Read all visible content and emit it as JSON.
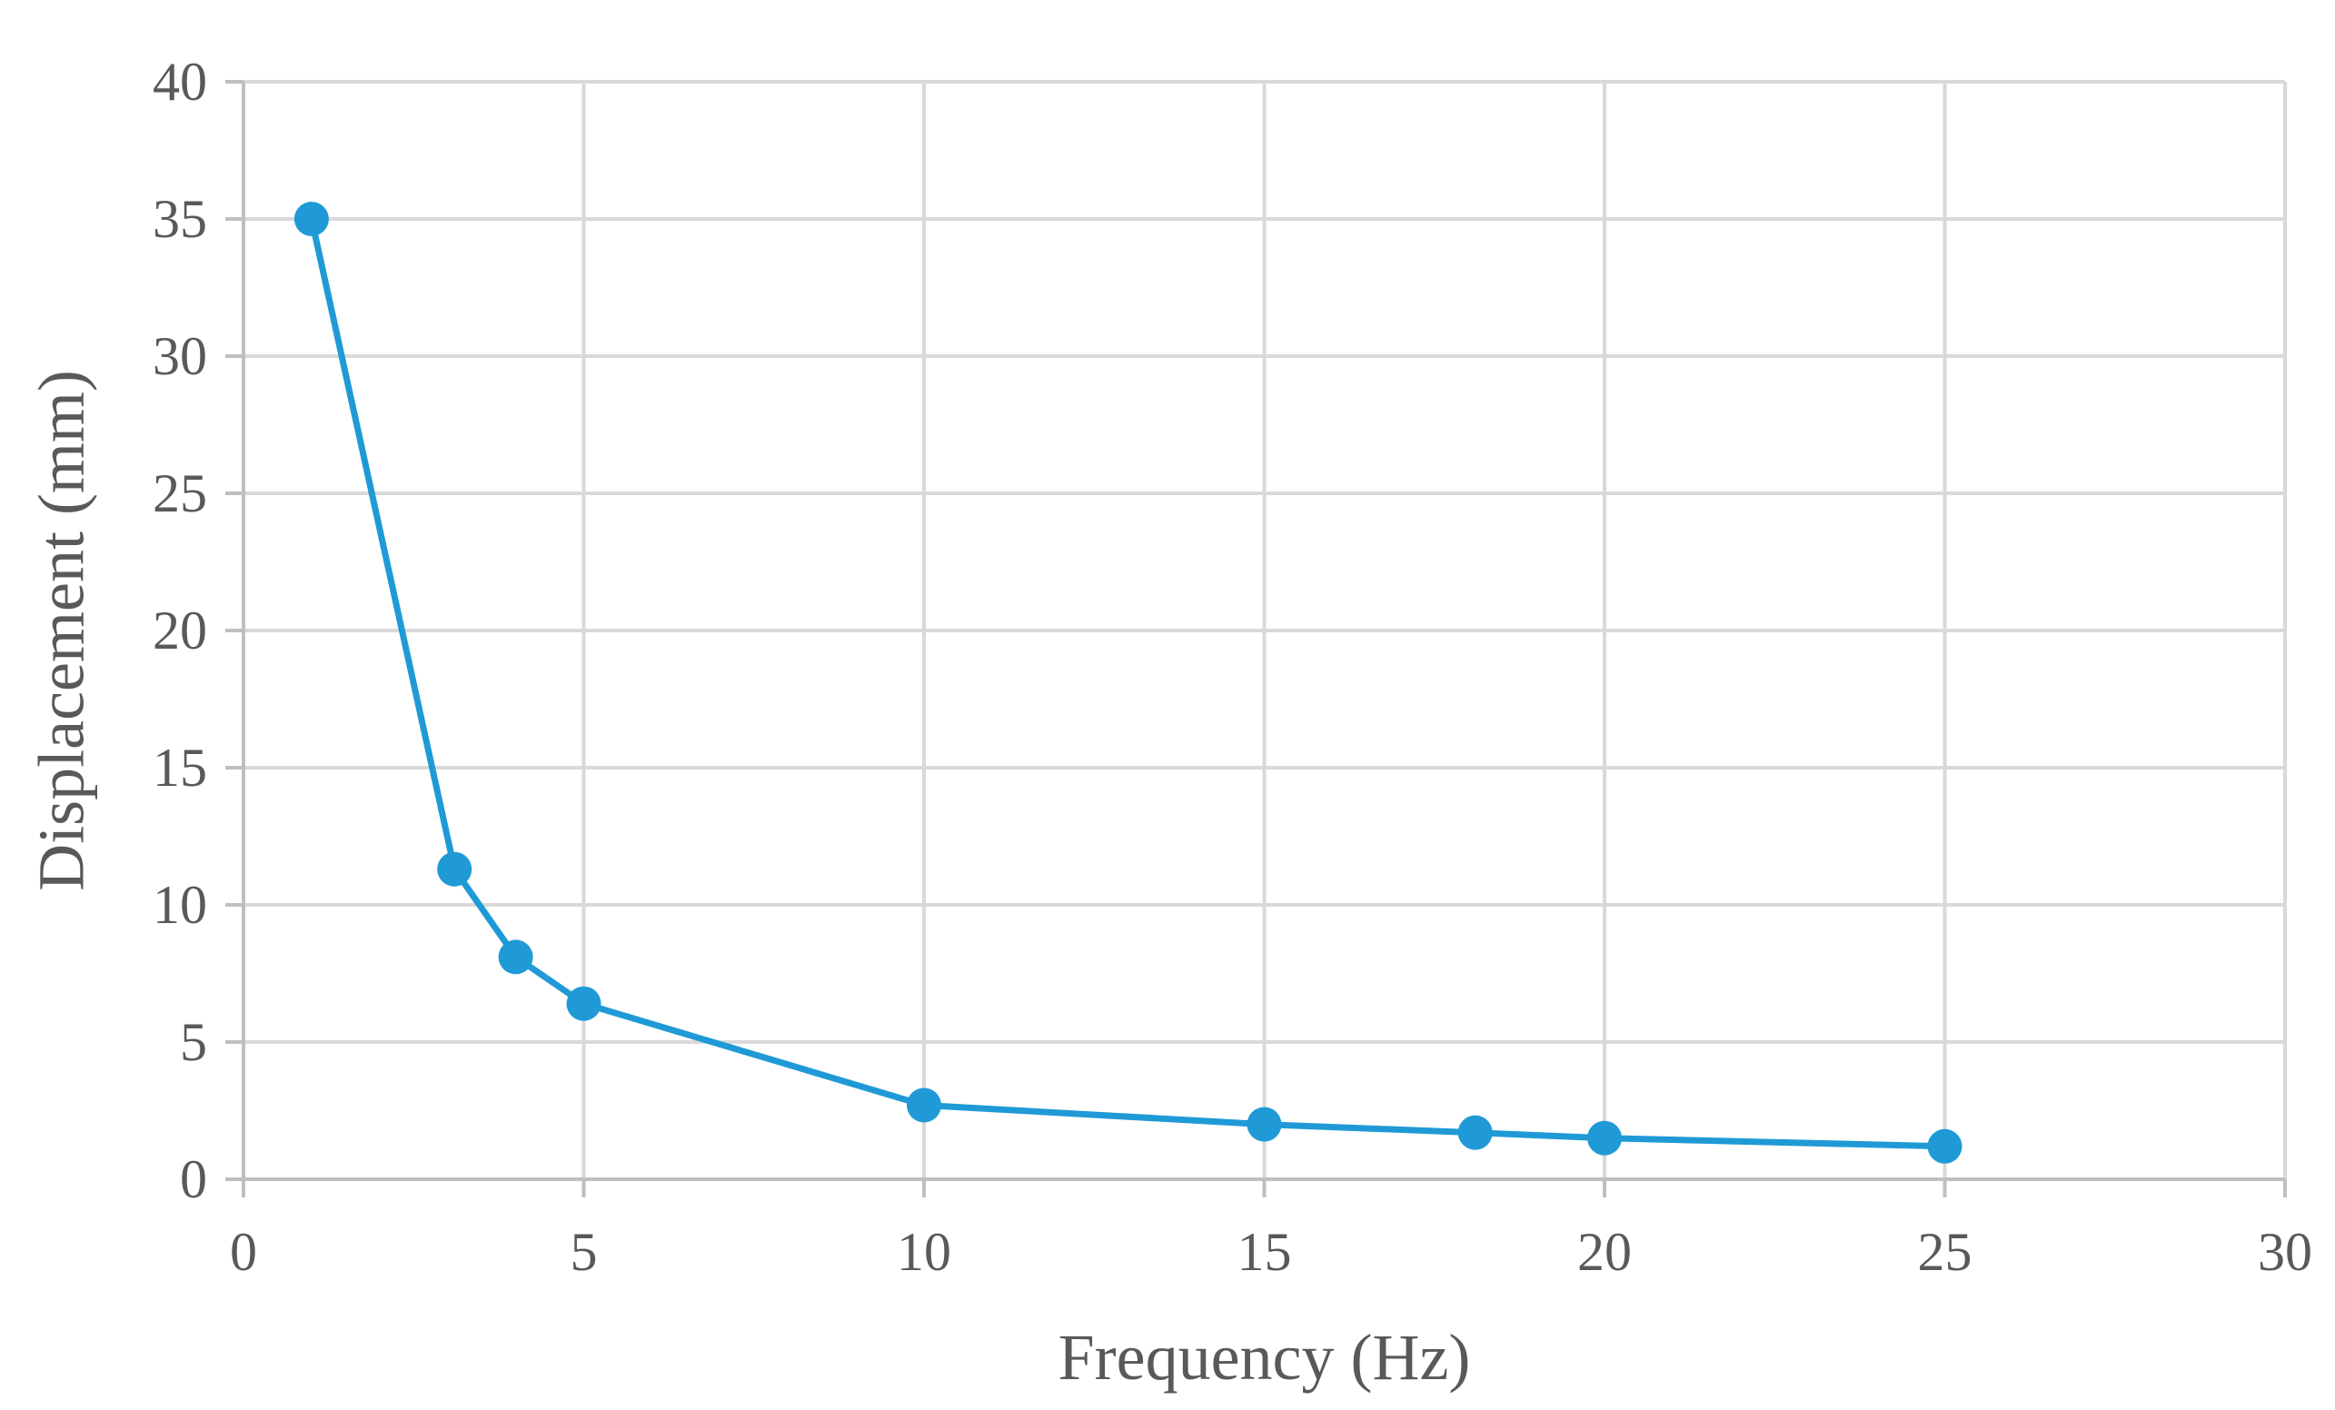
{
  "chart_data": {
    "type": "line",
    "title": "",
    "xlabel": "Frequency (Hz)",
    "ylabel": "Displacement (mm)",
    "xlim": [
      0,
      30
    ],
    "ylim": [
      0,
      40
    ],
    "x_ticks": [
      "0",
      "5",
      "10",
      "15",
      "20",
      "25",
      "30"
    ],
    "y_ticks": [
      "0",
      "5",
      "10",
      "15",
      "20",
      "25",
      "30",
      "35",
      "40"
    ],
    "grid": true,
    "legend": "none",
    "series": [
      {
        "x": [
          1,
          3.1,
          4,
          5,
          10,
          15,
          18.1,
          20,
          25
        ],
        "y": [
          35,
          11.3,
          8.1,
          6.4,
          2.7,
          2.0,
          1.7,
          1.5,
          1.2
        ],
        "color": "#1f9ad6",
        "marker": "circle"
      }
    ]
  }
}
